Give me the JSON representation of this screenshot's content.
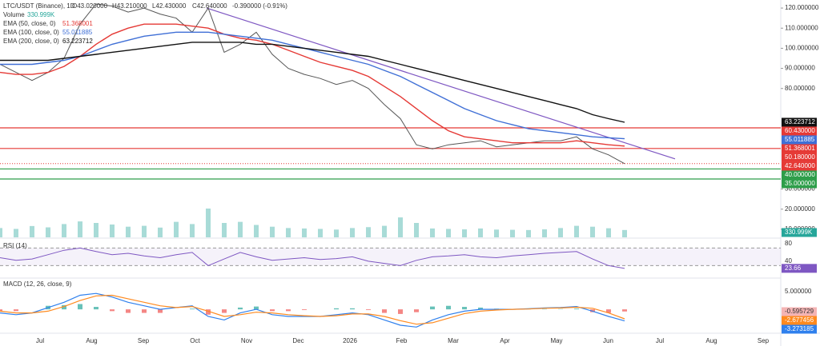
{
  "chart_data": {
    "type": "line",
    "title": "LTC/USDT (Binance), 1D",
    "ohlc": [
      "O43.020000",
      "H43.210000",
      "L42.430000",
      "C42.640000",
      "-0.390000 (-0.91%)"
    ],
    "volume_title": "Volume",
    "months": [
      "Jul",
      "Aug",
      "Sep",
      "Oct",
      "Nov",
      "Dec",
      "2026",
      "Feb",
      "Mar",
      "Apr",
      "May",
      "Jun",
      "Jul",
      "Aug",
      "Sep"
    ],
    "ylim": [
      6,
      124
    ],
    "yticks": [
      {
        "value": 120,
        "label": "120.000000"
      },
      {
        "value": 110,
        "label": "110.000000"
      },
      {
        "value": 100,
        "label": "100.000000"
      },
      {
        "value": 90,
        "label": "90.000000"
      },
      {
        "value": 80,
        "label": "80.000000"
      },
      {
        "value": 30,
        "label": "30.000000"
      },
      {
        "value": 20,
        "label": "20.000000"
      },
      {
        "value": 10,
        "label": "10.000000"
      }
    ],
    "price": {
      "color": "#555555",
      "values": [
        92,
        88,
        84,
        88,
        95,
        112,
        122,
        121,
        118,
        120,
        117,
        115,
        108,
        120,
        98,
        102,
        108,
        97,
        90,
        87,
        85,
        82,
        84,
        80,
        72,
        65,
        52,
        50,
        52,
        53,
        54,
        51,
        52,
        53,
        54,
        54,
        56,
        50,
        47,
        42.64
      ],
      "value_label": "42.640000",
      "label_color": "#e53935"
    },
    "series": [
      {
        "name": "EMA (50, close, 0)",
        "color": "#e53935",
        "value_label": "51.368001",
        "values": [
          88,
          87,
          87,
          88,
          91,
          96,
          102,
          107,
          110,
          112,
          112,
          112,
          111,
          110,
          107,
          105,
          104,
          102,
          99,
          96,
          93,
          91,
          89,
          86,
          81,
          76,
          70,
          64,
          59,
          56,
          55,
          54,
          53,
          53,
          53,
          53,
          54,
          53,
          52,
          51.368001
        ]
      },
      {
        "name": "EMA (100, close, 0)",
        "color": "#3f6fd6",
        "value_label": "55.011885",
        "values": [
          92,
          92,
          92,
          93,
          94,
          96,
          99,
          102,
          104,
          106,
          107,
          108,
          108,
          108,
          107,
          106,
          105,
          104,
          102,
          100,
          98,
          96,
          94,
          92,
          89,
          86,
          82,
          78,
          74,
          70,
          67,
          64,
          62,
          60,
          59,
          58,
          57,
          56,
          55.5,
          55.011885
        ]
      },
      {
        "name": "EMA (200, close, 0)",
        "color": "#111111",
        "value_label": "63.223712",
        "values": [
          94,
          94,
          94,
          94,
          95,
          96,
          97,
          98,
          99,
          100,
          101,
          102,
          103,
          103,
          103,
          103,
          102,
          102,
          101,
          100,
          99,
          98,
          97,
          96,
          94,
          92,
          90,
          88,
          86,
          84,
          82,
          80,
          78,
          76,
          74,
          72,
          70,
          67,
          65,
          63.223712
        ]
      }
    ],
    "levels": [
      {
        "value": 60.43,
        "label": "60.430000",
        "color": "#e53935"
      },
      {
        "value": 50.18,
        "label": "50.180000",
        "color": "#e53935"
      },
      {
        "value": 40,
        "label": "40.000000",
        "color": "#2e9e4a"
      },
      {
        "value": 35,
        "label": "35.000000",
        "color": "#2e9e4a"
      }
    ],
    "trendline": {
      "color": "#7e57c2",
      "values": [
        120,
        45
      ]
    },
    "volume": {
      "color": "#26a69a",
      "values": [
        420000,
        380000,
        510000,
        450000,
        600000,
        720000,
        650000,
        580000,
        480000,
        520000,
        440000,
        700000,
        600000,
        1300000,
        650000,
        700000,
        560000,
        480000,
        420000,
        400000,
        380000,
        350000,
        420000,
        460000,
        520000,
        900000,
        650000,
        400000,
        380000,
        360000,
        400000,
        350000,
        340000,
        330000,
        360000,
        420000,
        520000,
        480000,
        410000,
        330999
      ],
      "value_label": "330.999K"
    },
    "rsi": {
      "title": "RSI (14)",
      "color": "#7e57c2",
      "ylim": [
        7,
        89
      ],
      "yticks": [
        80,
        40
      ],
      "bands": [
        70,
        30
      ],
      "value_label": "23.66",
      "values": [
        48,
        42,
        45,
        55,
        65,
        70,
        62,
        55,
        58,
        52,
        48,
        55,
        60,
        30,
        45,
        60,
        50,
        42,
        45,
        48,
        44,
        46,
        50,
        40,
        35,
        30,
        42,
        50,
        52,
        55,
        50,
        48,
        52,
        55,
        58,
        60,
        62,
        45,
        30,
        23.66
      ]
    },
    "macd": {
      "title": "MACD (12, 26, close, 9)",
      "ylim": [
        -6.3,
        8.4
      ],
      "yticks": [
        {
          "value": 5,
          "label": "5.000000"
        }
      ],
      "macd": {
        "color": "#2f80ed",
        "value_label": "-3.273185",
        "values": [
          -1,
          -1.5,
          -1,
          0.5,
          2,
          4,
          4.5,
          3.5,
          2,
          1,
          0,
          0.5,
          1,
          -2,
          -3,
          -1,
          0,
          -1.5,
          -2,
          -2,
          -2,
          -1.5,
          -1,
          -1.5,
          -3,
          -4.5,
          -5,
          -3,
          -1.5,
          -0.5,
          0,
          0,
          0,
          0.2,
          0.4,
          0.5,
          0.8,
          -0.5,
          -2,
          -3.273185
        ]
      },
      "signal": {
        "color": "#ff8a1f",
        "value_label": "-2.677456",
        "values": [
          -0.5,
          -1,
          -1,
          -0.5,
          0.8,
          2.5,
          3.8,
          4,
          3,
          2,
          1,
          0.5,
          0.8,
          -0.5,
          -2,
          -1.5,
          -0.8,
          -1,
          -1.5,
          -1.8,
          -2,
          -1.8,
          -1.3,
          -1.3,
          -2,
          -3.2,
          -4.2,
          -3.8,
          -2.5,
          -1.2,
          -0.5,
          -0.2,
          0,
          0.1,
          0.3,
          0.4,
          0.6,
          0.3,
          -1,
          -2.677456
        ]
      },
      "histogram": {
        "up_color": "#26a69a",
        "down_color": "#ef5350",
        "value_label": "-0.595729",
        "values": [
          -0.5,
          -0.5,
          0,
          1,
          1.2,
          1.5,
          0.7,
          -0.5,
          -1,
          -1,
          -1,
          0,
          0.2,
          -1.5,
          -1,
          0.5,
          0.8,
          -0.5,
          -0.5,
          -0.2,
          0,
          0.3,
          0.3,
          -0.2,
          -1,
          -1.3,
          -0.8,
          0.8,
          1,
          0.7,
          0.5,
          0.2,
          0,
          0.1,
          0.1,
          0.1,
          0.2,
          -0.8,
          -1,
          -0.595729
        ]
      }
    }
  }
}
